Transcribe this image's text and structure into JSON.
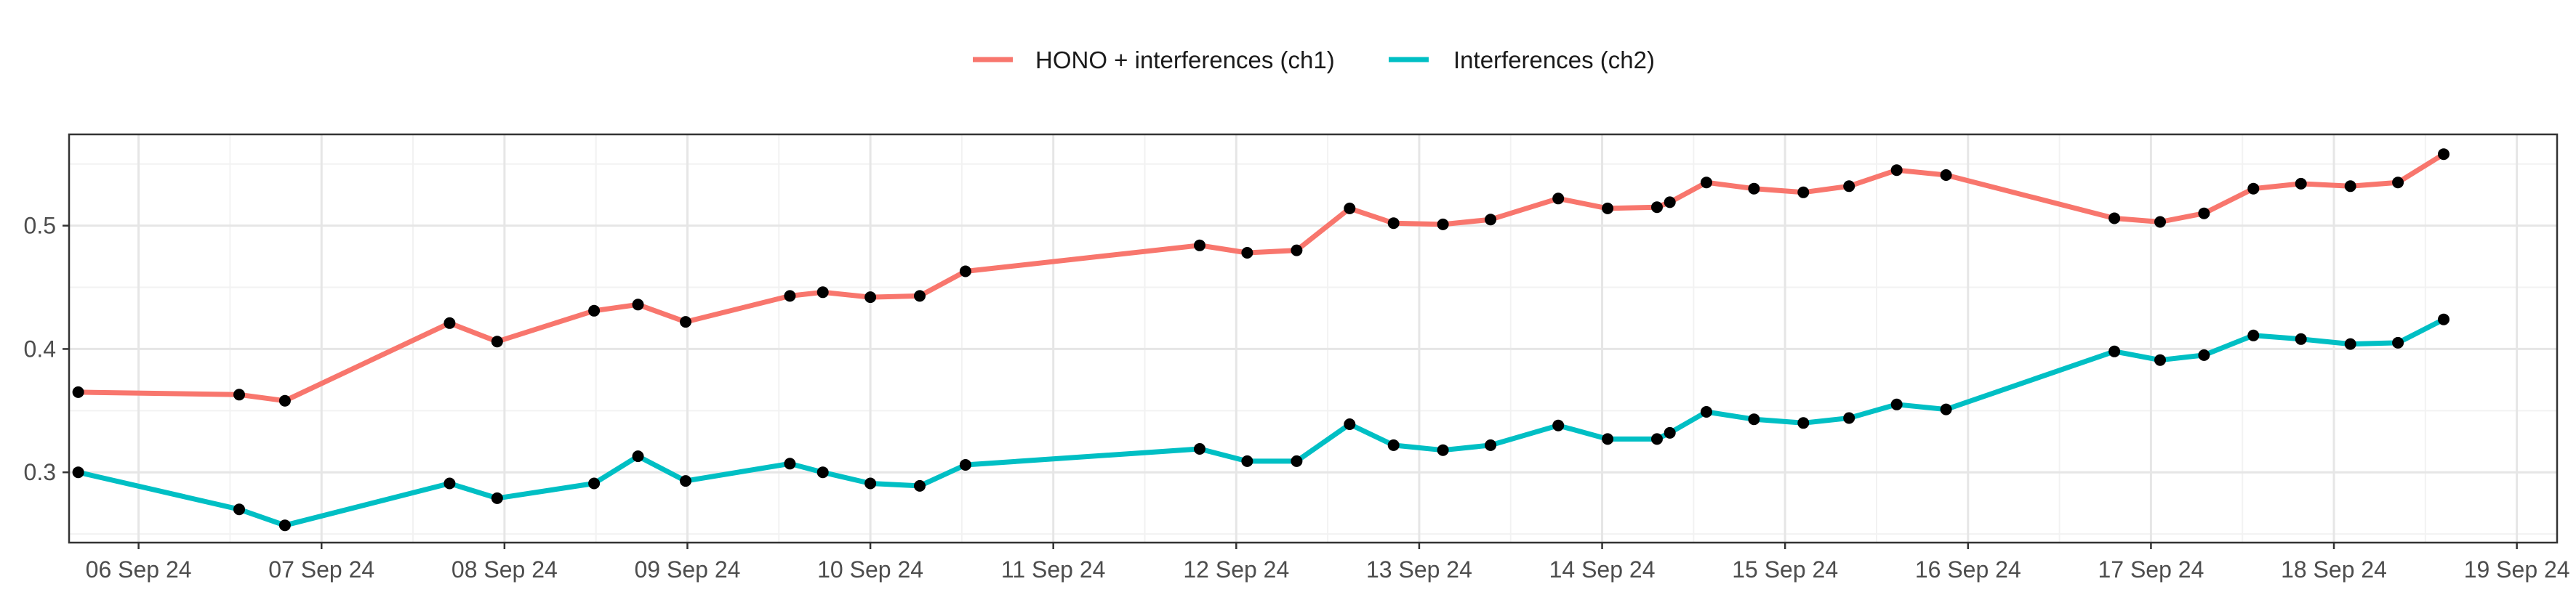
{
  "chart_data": {
    "type": "line",
    "title": "",
    "xlabel": "",
    "ylabel": "",
    "x_tick_labels": [
      "06 Sep 24",
      "07 Sep 24",
      "08 Sep 24",
      "09 Sep 24",
      "10 Sep 24",
      "11 Sep 24",
      "12 Sep 24",
      "13 Sep 24",
      "14 Sep 24",
      "15 Sep 24",
      "16 Sep 24",
      "17 Sep 24",
      "18 Sep 24",
      "19 Sep 24"
    ],
    "x_tick_days": [
      6,
      7,
      8,
      9,
      10,
      11,
      12,
      13,
      14,
      15,
      16,
      17,
      18,
      19
    ],
    "y_ticks": [
      0.3,
      0.4,
      0.5
    ],
    "y_tick_labels": [
      "0.3",
      "0.4",
      "0.5"
    ],
    "xlim_days": [
      5.62,
      19.22
    ],
    "ylim": [
      0.243,
      0.574
    ],
    "grid": true,
    "legend_position": "top",
    "series": [
      {
        "name": "HONO + interferences (ch1)",
        "color": "#F8766D",
        "points": [
          [
            5.67,
            0.365
          ],
          [
            6.55,
            0.363
          ],
          [
            6.8,
            0.358
          ],
          [
            7.7,
            0.421
          ],
          [
            7.96,
            0.406
          ],
          [
            8.49,
            0.431
          ],
          [
            8.73,
            0.436
          ],
          [
            8.99,
            0.422
          ],
          [
            9.56,
            0.443
          ],
          [
            9.74,
            0.446
          ],
          [
            10.0,
            0.442
          ],
          [
            10.27,
            0.443
          ],
          [
            10.52,
            0.463
          ],
          [
            11.8,
            0.484
          ],
          [
            12.06,
            0.478
          ],
          [
            12.33,
            0.48
          ],
          [
            12.62,
            0.514
          ],
          [
            12.86,
            0.502
          ],
          [
            13.13,
            0.501
          ],
          [
            13.39,
            0.505
          ],
          [
            13.76,
            0.522
          ],
          [
            14.03,
            0.514
          ],
          [
            14.3,
            0.515
          ],
          [
            14.37,
            0.519
          ],
          [
            14.57,
            0.535
          ],
          [
            14.83,
            0.53
          ],
          [
            15.1,
            0.527
          ],
          [
            15.35,
            0.532
          ],
          [
            15.61,
            0.545
          ],
          [
            15.88,
            0.541
          ],
          [
            16.8,
            0.506
          ],
          [
            17.05,
            0.503
          ],
          [
            17.29,
            0.51
          ],
          [
            17.56,
            0.53
          ],
          [
            17.82,
            0.534
          ],
          [
            18.09,
            0.532
          ],
          [
            18.35,
            0.535
          ],
          [
            18.6,
            0.558
          ]
        ]
      },
      {
        "name": "Interferences (ch2)",
        "color": "#00BFC4",
        "points": [
          [
            5.67,
            0.3
          ],
          [
            6.55,
            0.27
          ],
          [
            6.8,
            0.257
          ],
          [
            7.7,
            0.291
          ],
          [
            7.96,
            0.279
          ],
          [
            8.49,
            0.291
          ],
          [
            8.73,
            0.313
          ],
          [
            8.99,
            0.293
          ],
          [
            9.56,
            0.307
          ],
          [
            9.74,
            0.3
          ],
          [
            10.0,
            0.291
          ],
          [
            10.27,
            0.289
          ],
          [
            10.52,
            0.306
          ],
          [
            11.8,
            0.319
          ],
          [
            12.06,
            0.309
          ],
          [
            12.33,
            0.309
          ],
          [
            12.62,
            0.339
          ],
          [
            12.86,
            0.322
          ],
          [
            13.13,
            0.318
          ],
          [
            13.39,
            0.322
          ],
          [
            13.76,
            0.338
          ],
          [
            14.03,
            0.327
          ],
          [
            14.3,
            0.327
          ],
          [
            14.37,
            0.332
          ],
          [
            14.57,
            0.349
          ],
          [
            14.83,
            0.343
          ],
          [
            15.1,
            0.34
          ],
          [
            15.35,
            0.344
          ],
          [
            15.61,
            0.355
          ],
          [
            15.88,
            0.351
          ],
          [
            16.8,
            0.398
          ],
          [
            17.05,
            0.391
          ],
          [
            17.29,
            0.395
          ],
          [
            17.56,
            0.411
          ],
          [
            17.82,
            0.408
          ],
          [
            18.09,
            0.404
          ],
          [
            18.35,
            0.405
          ],
          [
            18.6,
            0.424
          ]
        ]
      }
    ]
  }
}
